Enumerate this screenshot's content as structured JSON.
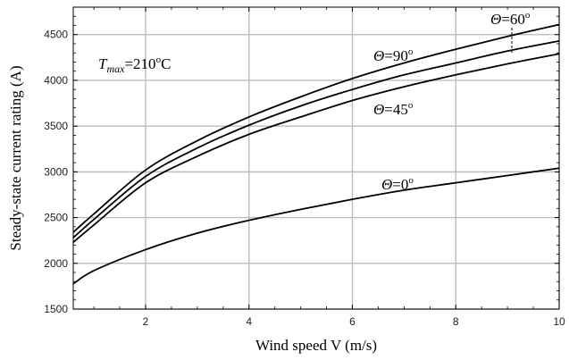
{
  "chart_data": {
    "type": "line",
    "xlabel": "Wind speed V (m/s)",
    "ylabel": "Steady-state current rating (A)",
    "xlim": [
      0.6,
      10
    ],
    "ylim": [
      1500,
      4800
    ],
    "x_ticks": [
      2,
      4,
      6,
      8,
      10
    ],
    "y_ticks": [
      1500,
      2000,
      2500,
      3000,
      3500,
      4000,
      4500
    ],
    "x_ticklabels": [
      "2",
      "4",
      "6",
      "8",
      "10"
    ],
    "y_ticklabels": [
      "1500",
      "2000",
      "2500",
      "3000",
      "3500",
      "4000",
      "4500"
    ],
    "grid": true,
    "x": [
      0.6,
      1,
      2,
      3,
      4,
      5,
      6,
      7,
      8,
      9,
      10
    ],
    "series": [
      {
        "name": "Θ=60°",
        "values": [
          2340,
          2540,
          3020,
          3340,
          3600,
          3820,
          4020,
          4190,
          4340,
          4480,
          4610
        ],
        "color": "#000000"
      },
      {
        "name": "Θ=90°",
        "values": [
          2280,
          2480,
          2950,
          3260,
          3510,
          3720,
          3900,
          4060,
          4190,
          4320,
          4430
        ],
        "color": "#000000"
      },
      {
        "name": "Θ=45°",
        "values": [
          2230,
          2420,
          2880,
          3170,
          3410,
          3600,
          3780,
          3930,
          4060,
          4180,
          4290
        ],
        "color": "#000000"
      },
      {
        "name": "Θ=0°",
        "values": [
          1775,
          1920,
          2150,
          2330,
          2470,
          2590,
          2700,
          2800,
          2880,
          2960,
          3040
        ],
        "color": "#000000"
      }
    ],
    "annotations": {
      "tmax": {
        "sym": "T",
        "sub": "max",
        "rest": "=210",
        "deg": "o",
        "unit": "C"
      },
      "theta60": {
        "sym": "Θ",
        "rest": "=60",
        "deg": "o"
      },
      "theta90": {
        "sym": "Θ",
        "rest": "=90",
        "deg": "o"
      },
      "theta45": {
        "sym": "Θ",
        "rest": "=45",
        "deg": "o"
      },
      "theta0": {
        "sym": "Θ",
        "rest": "=0",
        "deg": "o"
      }
    }
  }
}
